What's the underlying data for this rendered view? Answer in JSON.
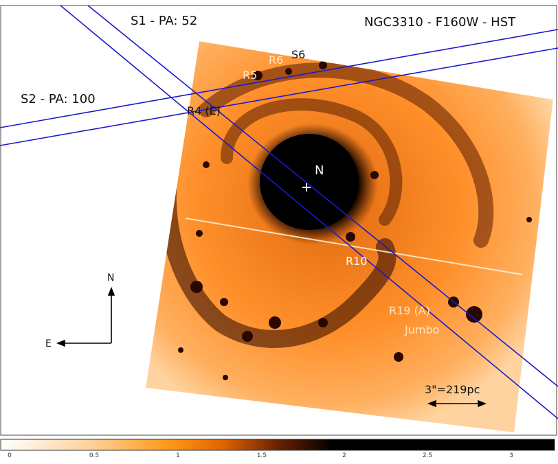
{
  "labels": {
    "title": "NGC3310  -  F160W - HST",
    "slit1": "S1 - PA: 52",
    "slit2": "S2 - PA: 100",
    "r4": "R4 (E)",
    "r5": "R5",
    "r6": "R6",
    "s6": "S6",
    "nucleus": "N",
    "r10": "R10",
    "r19": "R19 (A)",
    "jumbo": "Jumbo",
    "compass_north": "N",
    "compass_east": "E",
    "scale": "3\"=219pc"
  },
  "colorbar": {
    "ticks": [
      "0",
      "0.5",
      "1",
      "1.5",
      "2",
      "2.5",
      "3"
    ],
    "colors": [
      "#ffffff",
      "#ffd29a",
      "#ff9a1a",
      "#e06400",
      "#8a2e00",
      "#1a0600",
      "#000000"
    ]
  },
  "colors": {
    "slit": "#1a1acc",
    "image_base": "#ff9a33",
    "image_dark": "#2a0a00"
  }
}
